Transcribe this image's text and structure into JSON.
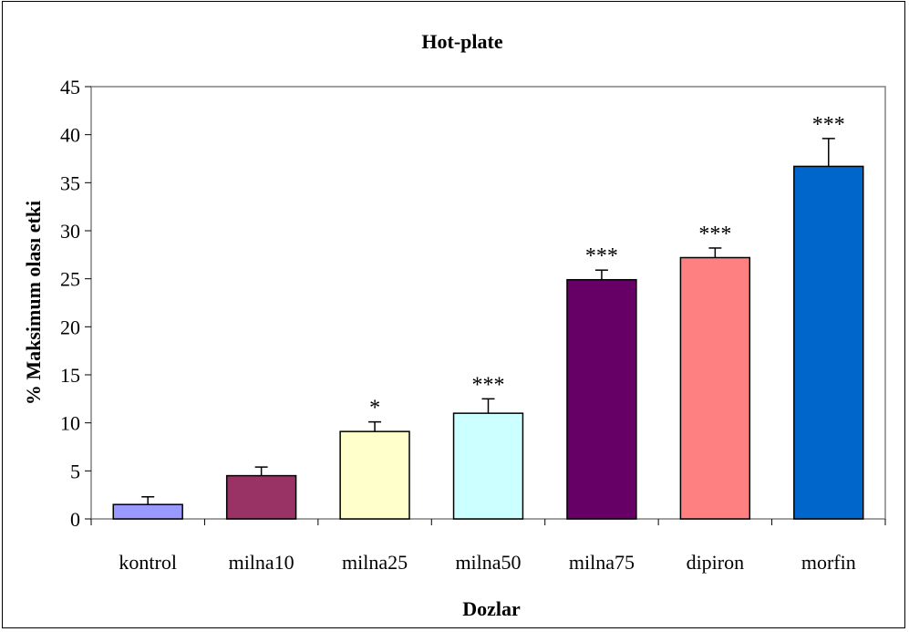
{
  "chart_data": {
    "type": "bar",
    "title": "Hot-plate",
    "xlabel": "Dozlar",
    "ylabel": "% Maksimum olası etki",
    "categories": [
      "kontrol",
      "milna10",
      "milna25",
      "milna50",
      "milna75",
      "dipiron",
      "morfin"
    ],
    "values": [
      1.5,
      4.5,
      9.1,
      11.0,
      24.9,
      27.2,
      36.7
    ],
    "error_bars": [
      0.8,
      0.9,
      1.0,
      1.5,
      1.0,
      1.0,
      2.9
    ],
    "significance": [
      "",
      "",
      "*",
      "***",
      "***",
      "***",
      "***"
    ],
    "bar_colors": [
      "#9999ff",
      "#993366",
      "#ffffcc",
      "#ccffff",
      "#660066",
      "#ff8080",
      "#0066cc"
    ],
    "ylim": [
      0,
      45
    ],
    "yticks": [
      0,
      5,
      10,
      15,
      20,
      25,
      30,
      35,
      40,
      45
    ],
    "grid": false,
    "plot_area_border": "#808080"
  }
}
